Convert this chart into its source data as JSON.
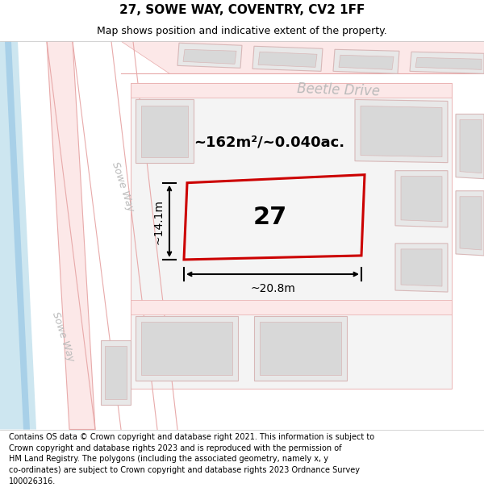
{
  "title": "27, SOWE WAY, COVENTRY, CV2 1FF",
  "subtitle": "Map shows position and indicative extent of the property.",
  "footer": "Contains OS data © Crown copyright and database right 2021. This information is subject to Crown copyright and database rights 2023 and is reproduced with the permission of\nHM Land Registry. The polygons (including the associated geometry, namely x, y\nco-ordinates) are subject to Crown copyright and database rights 2023 Ordnance Survey\n100026316.",
  "area_label": "~162m²/~0.040ac.",
  "width_label": "~20.8m",
  "height_label": "~14.1m",
  "plot_number": "27",
  "road_label_beetle": "Beetle Drive",
  "road_label_sowe_top": "Sowe Way",
  "road_label_sowe_bot": "Sowe Way",
  "bg_white": "#ffffff",
  "road_fill": "#fce8e8",
  "road_edge": "#e8aaaa",
  "building_fill": "#e8e8e8",
  "building_edge": "#d8b8b8",
  "water_fill": "#cde6f0",
  "water_line": "#a8d0e8",
  "highlight_red": "#cc0000",
  "label_gray": "#bbbbbb",
  "title_fontsize": 11,
  "subtitle_fontsize": 9,
  "footer_fontsize": 7.0
}
